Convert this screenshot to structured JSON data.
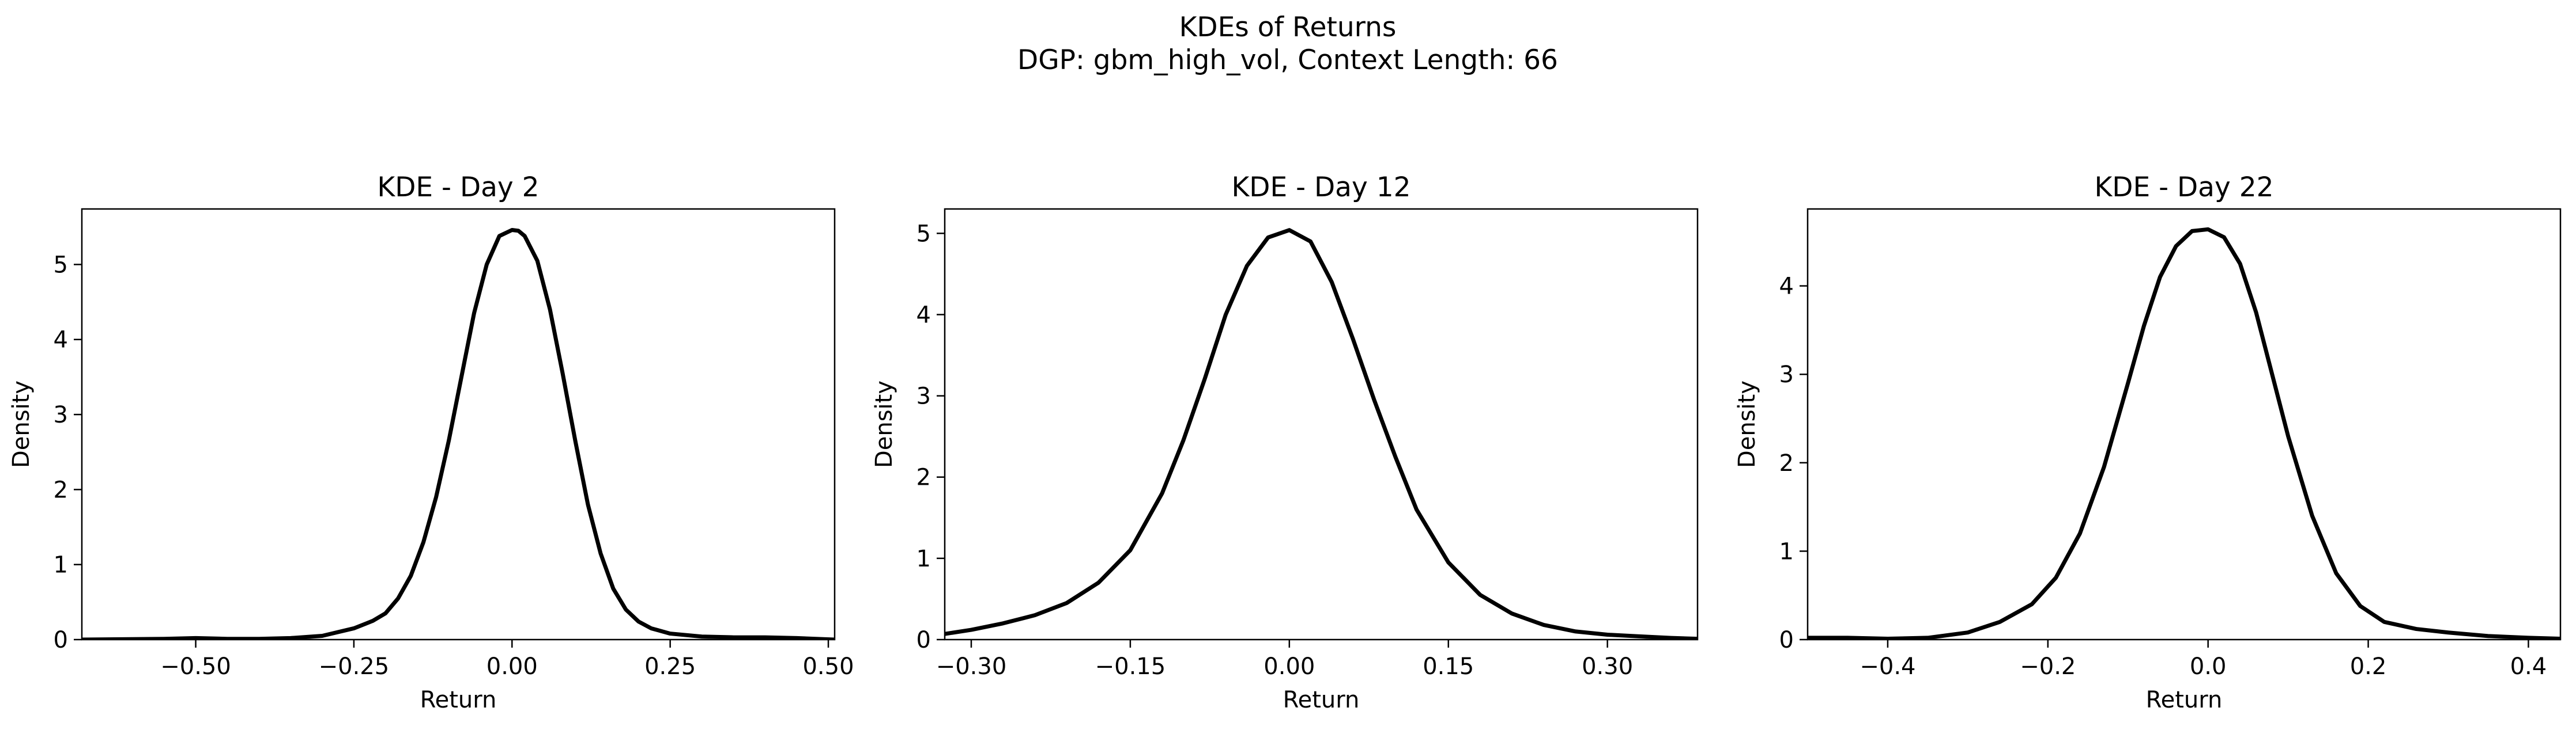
{
  "figure": {
    "title": "KDEs of Returns",
    "subtitle": "DGP: gbm_high_vol, Context Length: 66"
  },
  "line_color": "#000000",
  "chart_data": [
    {
      "type": "line",
      "title": "KDE - Day 2",
      "xlabel": "Return",
      "ylabel": "Density",
      "xlim": [
        -0.68,
        0.51
      ],
      "ylim": [
        0,
        5.74
      ],
      "xticks": [
        -0.5,
        -0.25,
        0.0,
        0.25,
        0.5
      ],
      "xtick_labels": [
        "−0.50",
        "−0.25",
        "0.00",
        "0.25",
        "0.50"
      ],
      "yticks": [
        0,
        1,
        2,
        3,
        4,
        5
      ],
      "ytick_labels": [
        "0",
        "1",
        "2",
        "3",
        "4",
        "5"
      ],
      "grid": false,
      "series": [
        {
          "x": [
            -0.68,
            -0.55,
            -0.5,
            -0.45,
            -0.4,
            -0.35,
            -0.3,
            -0.25,
            -0.22,
            -0.2,
            -0.18,
            -0.16,
            -0.14,
            -0.12,
            -0.1,
            -0.08,
            -0.06,
            -0.04,
            -0.02,
            0.0,
            0.01,
            0.02,
            0.04,
            0.06,
            0.08,
            0.1,
            0.12,
            0.14,
            0.16,
            0.18,
            0.2,
            0.22,
            0.25,
            0.3,
            0.35,
            0.4,
            0.45,
            0.51
          ],
          "y": [
            0.0,
            0.01,
            0.02,
            0.01,
            0.01,
            0.02,
            0.05,
            0.15,
            0.25,
            0.35,
            0.55,
            0.85,
            1.3,
            1.9,
            2.65,
            3.5,
            4.35,
            5.0,
            5.38,
            5.46,
            5.45,
            5.38,
            5.05,
            4.4,
            3.55,
            2.65,
            1.8,
            1.15,
            0.68,
            0.4,
            0.24,
            0.15,
            0.08,
            0.04,
            0.03,
            0.03,
            0.02,
            0.0
          ]
        }
      ]
    },
    {
      "type": "line",
      "title": "KDE - Day 12",
      "xlabel": "Return",
      "ylabel": "Density",
      "xlim": [
        -0.325,
        0.385
      ],
      "ylim": [
        0,
        5.3
      ],
      "xticks": [
        -0.3,
        -0.15,
        0.0,
        0.15,
        0.3
      ],
      "xtick_labels": [
        "−0.30",
        "−0.15",
        "0.00",
        "0.15",
        "0.30"
      ],
      "yticks": [
        0,
        1,
        2,
        3,
        4,
        5
      ],
      "ytick_labels": [
        "0",
        "1",
        "2",
        "3",
        "4",
        "5"
      ],
      "grid": false,
      "series": [
        {
          "x": [
            -0.325,
            -0.3,
            -0.27,
            -0.24,
            -0.21,
            -0.18,
            -0.15,
            -0.12,
            -0.1,
            -0.08,
            -0.06,
            -0.04,
            -0.02,
            0.0,
            0.02,
            0.04,
            0.06,
            0.08,
            0.1,
            0.12,
            0.15,
            0.18,
            0.21,
            0.24,
            0.27,
            0.3,
            0.33,
            0.36,
            0.385
          ],
          "y": [
            0.07,
            0.12,
            0.2,
            0.3,
            0.45,
            0.7,
            1.1,
            1.8,
            2.45,
            3.2,
            4.0,
            4.6,
            4.95,
            5.04,
            4.9,
            4.4,
            3.7,
            2.95,
            2.25,
            1.6,
            0.95,
            0.55,
            0.32,
            0.18,
            0.1,
            0.06,
            0.04,
            0.02,
            0.01
          ]
        }
      ]
    },
    {
      "type": "line",
      "title": "KDE - Day 22",
      "xlabel": "Return",
      "ylabel": "Density",
      "xlim": [
        -0.5,
        0.44
      ],
      "ylim": [
        0,
        4.87
      ],
      "xticks": [
        -0.4,
        -0.2,
        0.0,
        0.2,
        0.4
      ],
      "xtick_labels": [
        "−0.4",
        "−0.2",
        "0.0",
        "0.2",
        "0.4"
      ],
      "yticks": [
        0,
        1,
        2,
        3,
        4
      ],
      "ytick_labels": [
        "0",
        "1",
        "2",
        "3",
        "4"
      ],
      "grid": false,
      "series": [
        {
          "x": [
            -0.5,
            -0.45,
            -0.4,
            -0.35,
            -0.3,
            -0.26,
            -0.22,
            -0.19,
            -0.16,
            -0.13,
            -0.1,
            -0.08,
            -0.06,
            -0.04,
            -0.02,
            0.0,
            0.02,
            0.04,
            0.06,
            0.08,
            0.1,
            0.13,
            0.16,
            0.19,
            0.22,
            0.26,
            0.3,
            0.35,
            0.4,
            0.44
          ],
          "y": [
            0.02,
            0.02,
            0.01,
            0.02,
            0.08,
            0.2,
            0.4,
            0.7,
            1.2,
            1.95,
            2.9,
            3.55,
            4.1,
            4.45,
            4.62,
            4.64,
            4.55,
            4.25,
            3.7,
            3.0,
            2.3,
            1.4,
            0.75,
            0.38,
            0.2,
            0.12,
            0.08,
            0.04,
            0.02,
            0.01
          ]
        }
      ]
    }
  ]
}
